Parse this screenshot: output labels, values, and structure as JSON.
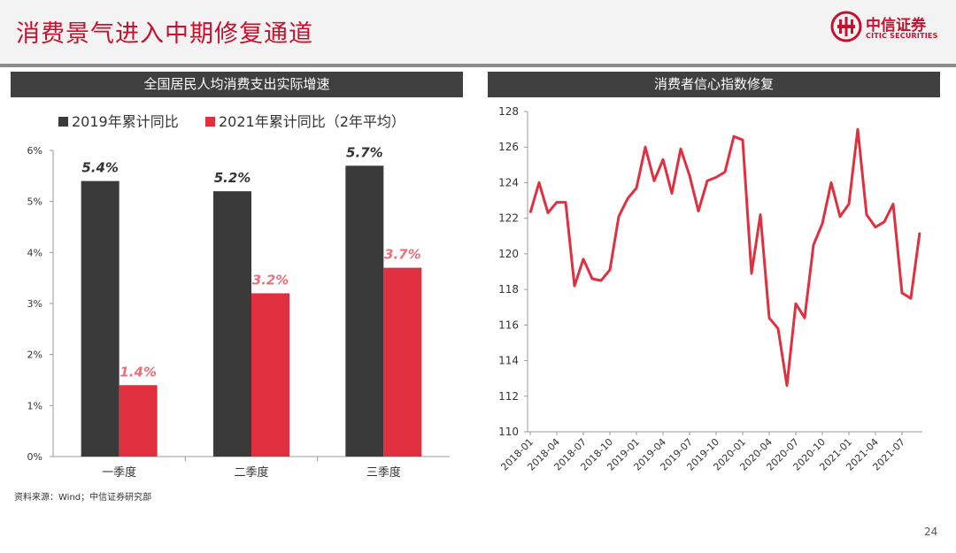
{
  "header": {
    "title": "消费景气进入中期修复通道",
    "logo_cn": "中信证券",
    "logo_en": "CITIC SECURITIES"
  },
  "left_panel": {
    "title": "全国居民人均消费支出实际增速"
  },
  "right_panel": {
    "title": "消费者信心指数修复"
  },
  "footer": {
    "source": "资料来源：Wind；中信证券研究部",
    "page": "24"
  },
  "colors": {
    "brand_red": "#c8102e",
    "series_dark": "#3a3a3a",
    "series_red": "#e03040",
    "label_pink": "#e8707a"
  },
  "chart_data": [
    {
      "type": "bar",
      "categories": [
        "一季度",
        "二季度",
        "三季度"
      ],
      "series": [
        {
          "name": "2019年累计同比",
          "values": [
            5.4,
            5.2,
            5.7
          ],
          "labels": [
            "5.4%",
            "5.2%",
            "5.7%"
          ],
          "color": "#3a3a3a"
        },
        {
          "name": "2021年累计同比（2年平均）",
          "values": [
            1.4,
            3.2,
            3.7
          ],
          "labels": [
            "1.4%",
            "3.2%",
            "3.7%"
          ],
          "color": "#e03040"
        }
      ],
      "ylim": [
        0,
        6
      ],
      "yticks": [
        "0%",
        "1%",
        "2%",
        "3%",
        "4%",
        "5%",
        "6%"
      ],
      "legend": "top",
      "grid": false
    },
    {
      "type": "line",
      "x": [
        "2018-01",
        "2018-02",
        "2018-03",
        "2018-04",
        "2018-05",
        "2018-06",
        "2018-07",
        "2018-08",
        "2018-09",
        "2018-10",
        "2018-11",
        "2018-12",
        "2019-01",
        "2019-02",
        "2019-03",
        "2019-04",
        "2019-05",
        "2019-06",
        "2019-07",
        "2019-08",
        "2019-09",
        "2019-10",
        "2019-11",
        "2019-12",
        "2020-01",
        "2020-02",
        "2020-03",
        "2020-04",
        "2020-05",
        "2020-06",
        "2020-07",
        "2020-08",
        "2020-09",
        "2020-10",
        "2020-11",
        "2020-12",
        "2021-01",
        "2021-02",
        "2021-03",
        "2021-04",
        "2021-05",
        "2021-06",
        "2021-07",
        "2021-08",
        "2021-09"
      ],
      "xticklabels": [
        "2018-01",
        "2018-04",
        "2018-07",
        "2018-10",
        "2019-01",
        "2019-04",
        "2019-07",
        "2019-10",
        "2020-01",
        "2020-04",
        "2020-07",
        "2020-10",
        "2021-01",
        "2021-04",
        "2021-07"
      ],
      "series": [
        {
          "values": [
            122.3,
            124.0,
            122.3,
            122.9,
            122.9,
            118.2,
            119.7,
            118.6,
            118.5,
            119.1,
            122.1,
            123.1,
            123.7,
            126.0,
            124.1,
            125.3,
            123.4,
            125.9,
            124.4,
            122.4,
            124.1,
            124.3,
            124.6,
            126.6,
            126.4,
            118.9,
            122.2,
            116.4,
            115.8,
            112.6,
            117.2,
            116.4,
            120.5,
            121.7,
            124.0,
            122.1,
            122.8,
            127.0,
            122.2,
            121.5,
            121.8,
            122.8,
            117.8,
            117.5,
            121.2
          ],
          "color": "#e03040"
        }
      ],
      "ylim": [
        110,
        128
      ],
      "yticks": [
        "110",
        "112",
        "114",
        "116",
        "118",
        "120",
        "122",
        "124",
        "126",
        "128"
      ],
      "grid": false
    }
  ]
}
